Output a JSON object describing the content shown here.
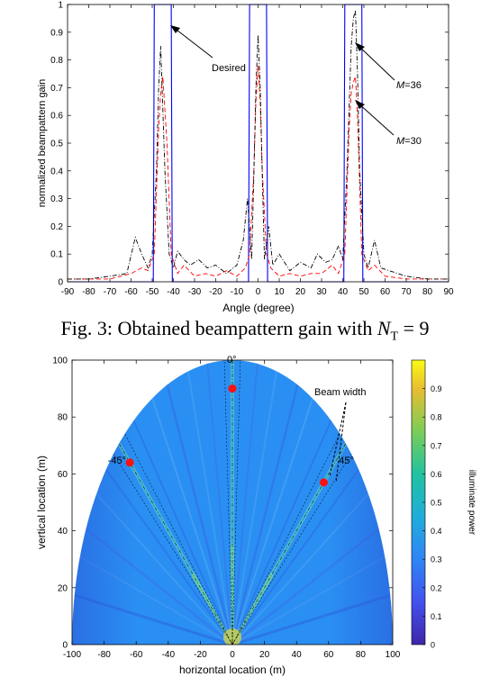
{
  "caption": {
    "prefix": "Fig. 3: Obtained beampattern gain with ",
    "var": "N",
    "sub": "T",
    "suffix": " = 9"
  },
  "chart_data": [
    {
      "type": "line",
      "xlabel": "Angle (degree)",
      "ylabel": "normalized beampattern gain",
      "xlim": [
        -90,
        90
      ],
      "ylim": [
        0,
        1
      ],
      "xticks": [
        "-90",
        "-80",
        "-70",
        "-60",
        "-50",
        "-40",
        "-30",
        "-20",
        "-10",
        "0",
        "10",
        "20",
        "30",
        "40",
        "50",
        "60",
        "70",
        "80",
        "90"
      ],
      "yticks": [
        "0",
        "0.1",
        "0.2",
        "0.3",
        "0.4",
        "0.5",
        "0.6",
        "0.7",
        "0.8",
        "0.9",
        "1"
      ],
      "grid": false,
      "series": [
        {
          "name": "Desired",
          "color": "#0000ff",
          "style": "solid",
          "x": [
            -90,
            -49.5,
            -49,
            -41,
            -40.5,
            -4.5,
            -4,
            4,
            4.5,
            40.5,
            41,
            49,
            49.5,
            90
          ],
          "y": [
            0,
            0,
            1,
            1,
            0,
            0,
            1,
            1,
            0,
            0,
            1,
            1,
            0,
            0
          ]
        },
        {
          "name": "M=36",
          "color": "#000000",
          "style": "dashdot",
          "x": [
            -90,
            -80,
            -70,
            -62,
            -58,
            -55,
            -52,
            -50,
            -48,
            -47,
            -46,
            -44,
            -42,
            -40,
            -38,
            -35,
            -32,
            -28,
            -24,
            -20,
            -15,
            -10,
            -7,
            -5,
            -3,
            -2,
            -1,
            0,
            1,
            2,
            3,
            5,
            7,
            10,
            15,
            20,
            25,
            28,
            32,
            35,
            38,
            40,
            42,
            44,
            45,
            46,
            47,
            48,
            50,
            52,
            55,
            58,
            62,
            70,
            80,
            90
          ],
          "y": [
            0.01,
            0.01,
            0.02,
            0.03,
            0.16,
            0.1,
            0.05,
            0.1,
            0.4,
            0.7,
            0.85,
            0.4,
            0.1,
            0.05,
            0.11,
            0.08,
            0.06,
            0.08,
            0.05,
            0.06,
            0.03,
            0.06,
            0.15,
            0.3,
            0.08,
            0.38,
            0.7,
            0.89,
            0.7,
            0.38,
            0.08,
            0.2,
            0.06,
            0.1,
            0.04,
            0.07,
            0.05,
            0.1,
            0.07,
            0.08,
            0.13,
            0.08,
            0.4,
            0.85,
            0.95,
            0.98,
            0.75,
            0.4,
            0.1,
            0.05,
            0.15,
            0.05,
            0.04,
            0.02,
            0.01,
            0.01
          ]
        },
        {
          "name": "M=30",
          "color": "#ff0000",
          "style": "dashed",
          "x": [
            -90,
            -80,
            -70,
            -60,
            -55,
            -52,
            -49,
            -47,
            -46,
            -45,
            -43,
            -41,
            -38,
            -35,
            -30,
            -25,
            -20,
            -15,
            -10,
            -6,
            -4,
            -2,
            -1,
            0,
            1,
            2,
            4,
            6,
            10,
            15,
            20,
            25,
            30,
            35,
            38,
            41,
            43,
            44,
            45,
            46,
            47,
            49,
            52,
            55,
            60,
            70,
            80,
            90
          ],
          "y": [
            0.01,
            0.01,
            0.01,
            0.03,
            0.05,
            0.04,
            0.1,
            0.55,
            0.68,
            0.74,
            0.5,
            0.1,
            0.03,
            0.06,
            0.02,
            0.03,
            0.02,
            0.04,
            0.02,
            0.05,
            0.1,
            0.4,
            0.65,
            0.78,
            0.65,
            0.4,
            0.1,
            0.05,
            0.02,
            0.03,
            0.02,
            0.03,
            0.03,
            0.06,
            0.03,
            0.1,
            0.55,
            0.68,
            0.72,
            0.74,
            0.6,
            0.1,
            0.04,
            0.06,
            0.02,
            0.01,
            0.01,
            0.01
          ]
        }
      ],
      "annotations": [
        {
          "text": "Desired",
          "x": 0,
          "y": 0
        },
        {
          "text": "M",
          "suffix": "=36"
        },
        {
          "text": "M",
          "suffix": "=30"
        }
      ]
    },
    {
      "type": "heatmap",
      "xlabel": "horizontal location (m)",
      "ylabel": "vertical location (m)",
      "colorbar_label": "illuminate power",
      "xlim": [
        -100,
        100
      ],
      "ylim": [
        0,
        100
      ],
      "xticks": [
        "-100",
        "-80",
        "-60",
        "-40",
        "-20",
        "0",
        "20",
        "40",
        "60",
        "80",
        "100"
      ],
      "yticks": [
        "0",
        "20",
        "40",
        "60",
        "80",
        "100"
      ],
      "cticks": [
        "0",
        "0.1",
        "0.2",
        "0.3",
        "0.4",
        "0.5",
        "0.6",
        "0.7",
        "0.8",
        "0.9"
      ],
      "clim": [
        0,
        1
      ],
      "beam_labels": [
        "-45°",
        "0°",
        "45°"
      ],
      "beam_angles": [
        -45,
        0,
        45
      ],
      "targets": [
        {
          "x": -64,
          "y": 64
        },
        {
          "x": 0,
          "y": 90
        },
        {
          "x": 57,
          "y": 57
        }
      ],
      "annotation": "Beam width"
    }
  ]
}
